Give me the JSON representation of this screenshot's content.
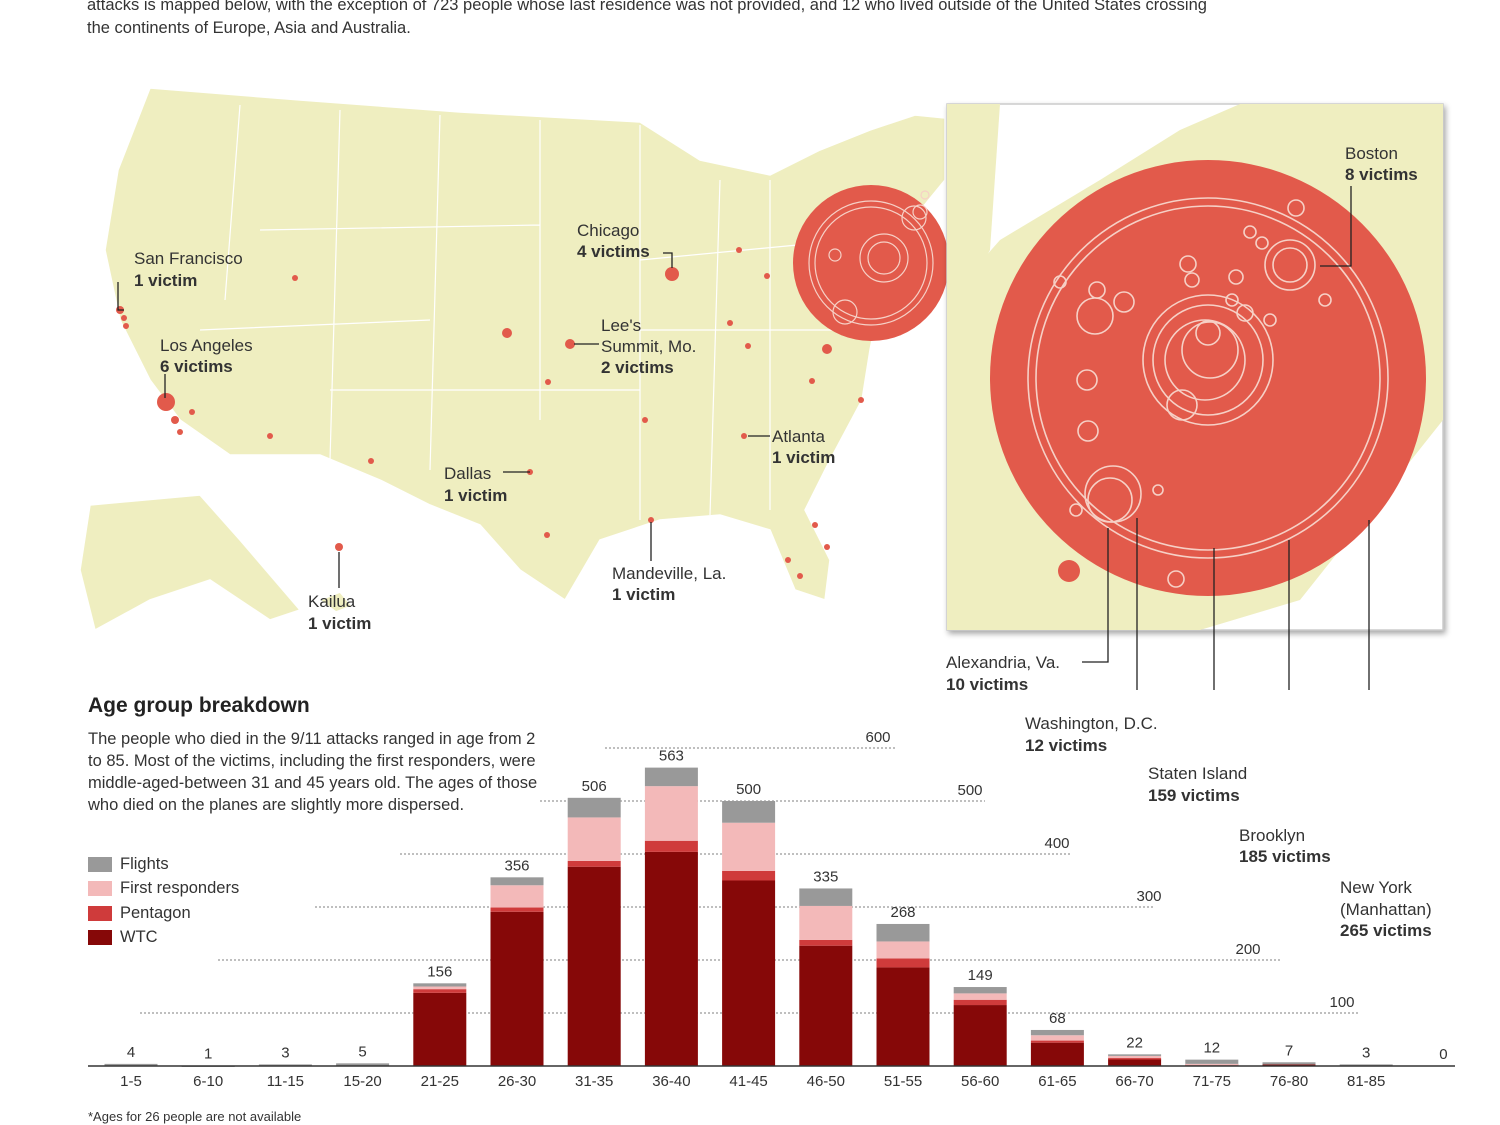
{
  "intro": {
    "lines": [
      "attacks is mapped below, with the exception of 723 people whose last residence was not provided, and 12 who lived outside of the United States crossing",
      "the continents of Europe, Asia and Australia."
    ]
  },
  "map": {
    "land_color": "#efeec0",
    "dot_color": "#e25a4b",
    "labels": {
      "san_francisco": {
        "name": "San Francisco",
        "count": "1 victim"
      },
      "los_angeles": {
        "name": "Los Angeles",
        "count": "6 victims"
      },
      "chicago": {
        "name": "Chicago",
        "count": "4 victims"
      },
      "lees_summit": {
        "name1": "Lee's",
        "name2": "Summit, Mo.",
        "count": "2 victims"
      },
      "atlanta": {
        "name": "Atlanta",
        "count": "1 victim"
      },
      "dallas": {
        "name": "Dallas",
        "count": "1 victim"
      },
      "mandeville": {
        "name": "Mandeville, La.",
        "count": "1 victim"
      },
      "kailua": {
        "name": "Kailua",
        "count": "1 victim"
      },
      "boston": {
        "name": "Boston",
        "count": "8 victims"
      },
      "alexandria": {
        "name": "Alexandria, Va.",
        "count": "10 victims"
      },
      "washington": {
        "name": "Washington, D.C.",
        "count": "12 victims"
      },
      "staten_island": {
        "name": "Staten Island",
        "count": "159 victims"
      },
      "brooklyn": {
        "name": "Brooklyn",
        "count": "185 victims"
      },
      "new_york": {
        "name1": "New York",
        "name2": "(Manhattan)",
        "count": "265 victims"
      }
    }
  },
  "chart_data": {
    "type": "bar",
    "stacked": true,
    "title": "Age group breakdown",
    "description": "The people who died in the 9/11 attacks ranged in age from 2 to 85. Most of the victims, including the first responders, were middle-aged-between 31 and 45 years old. The ages of those who died on the planes are slightly more dispersed.",
    "footnote": "*Ages for 26 people are not available",
    "categories": [
      "1-5",
      "6-10",
      "11-15",
      "15-20",
      "21-25",
      "26-30",
      "31-35",
      "36-40",
      "41-45",
      "46-50",
      "51-55",
      "56-60",
      "61-65",
      "66-70",
      "71-75",
      "76-80",
      "81-85",
      ""
    ],
    "totals": [
      4,
      1,
      3,
      5,
      156,
      356,
      506,
      563,
      500,
      335,
      268,
      149,
      68,
      22,
      12,
      7,
      3,
      0
    ],
    "series": [
      {
        "name": "WTC",
        "color": "#860808",
        "values": [
          0,
          0,
          0,
          0,
          138,
          291,
          376,
          404,
          350,
          227,
          186,
          115,
          44,
          13,
          3,
          3,
          0,
          0
        ]
      },
      {
        "name": "Pentagon",
        "color": "#cf3b3b",
        "values": [
          0,
          0,
          0,
          0,
          7,
          8,
          11,
          21,
          18,
          11,
          17,
          10,
          4,
          2,
          0,
          0,
          0,
          0
        ]
      },
      {
        "name": "First responders",
        "color": "#f3b9b9",
        "values": [
          0,
          0,
          0,
          0,
          5,
          42,
          82,
          103,
          91,
          64,
          32,
          12,
          10,
          4,
          1,
          0,
          0,
          0
        ]
      },
      {
        "name": "Flights",
        "color": "#999999",
        "values": [
          4,
          1,
          3,
          5,
          6,
          15,
          37,
          35,
          41,
          33,
          33,
          12,
          10,
          3,
          8,
          4,
          3,
          0
        ]
      }
    ],
    "legend_order": [
      "Flights",
      "First responders",
      "Pentagon",
      "WTC"
    ],
    "legend_placement": "left",
    "yticks": [
      100,
      200,
      300,
      400,
      500,
      600
    ],
    "ylim": [
      0,
      600
    ],
    "grid": true
  }
}
